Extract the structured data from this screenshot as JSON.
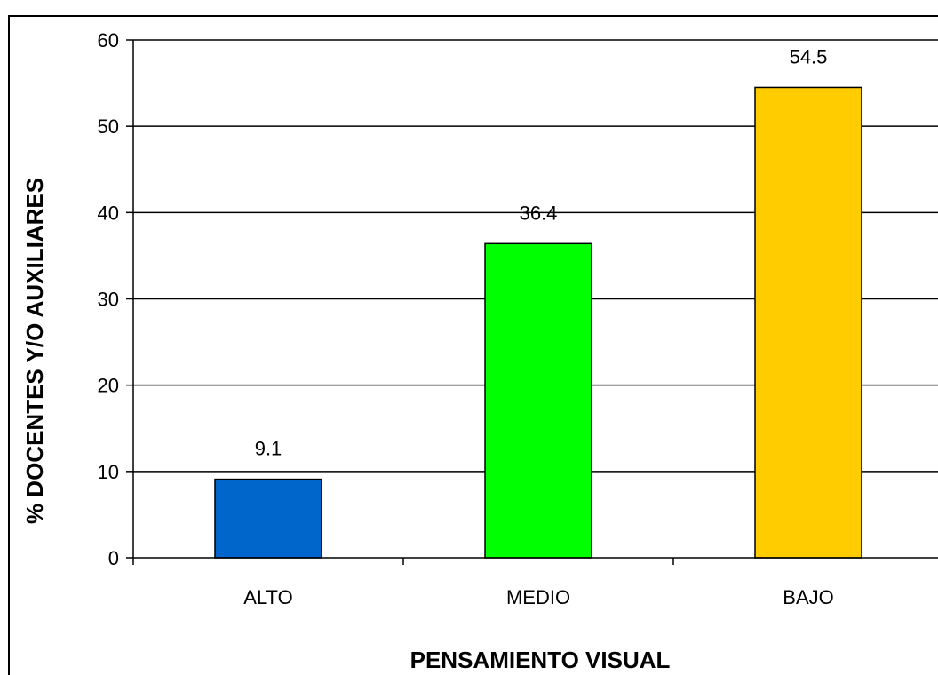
{
  "chart_data": {
    "type": "bar",
    "title": "",
    "xlabel": "PENSAMIENTO VISUAL",
    "ylabel": "% DOCENTES Y/O AUXILIARES",
    "categories": [
      "ALTO",
      "MEDIO",
      "BAJO"
    ],
    "values": [
      9.1,
      36.4,
      54.5
    ],
    "data_labels": [
      "9.1",
      "36.4",
      "54.5"
    ],
    "bar_colors": [
      "#0066CC",
      "#00FF00",
      "#FFCC00"
    ],
    "ylim": [
      0,
      60
    ],
    "yticks": [
      0,
      10,
      20,
      30,
      40,
      50,
      60
    ],
    "grid": true,
    "legend": "none"
  }
}
